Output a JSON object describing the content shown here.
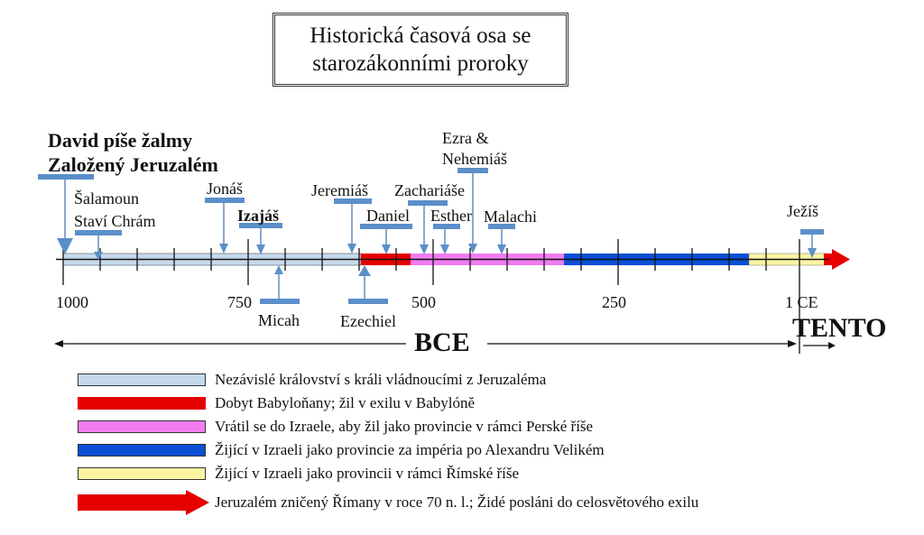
{
  "title": {
    "line1": "Historická časová osa se",
    "line2": "starozákonními proroky"
  },
  "colors": {
    "kingdom": "#c6d9ec",
    "babylon": "#e60000",
    "persia": "#f07cf0",
    "greek": "#0a4fd6",
    "rome": "#fbf5a3",
    "arrow": "#e60000",
    "marker": "#5b8fc9"
  },
  "events": {
    "david": "David píše žalmy",
    "jerusalem": "Založený Jeruzalém",
    "solomon1": "Šalamoun",
    "solomon2": "Staví Chrám",
    "jonah": "Jonáš",
    "isaiah": "Izajáš",
    "micah": "Micah",
    "jeremiah": "Jeremiáš",
    "daniel": "Daniel",
    "ezekiel": "Ezechiel",
    "zechariah": "Zachariáše",
    "esther": "Esther",
    "malachi": "Malachi",
    "ezra1": "Ezra &",
    "ezra2": "Nehemiáš",
    "jesus": "Ježíš"
  },
  "axis": {
    "ticks": [
      "1000",
      "750",
      "500",
      "250",
      "1 CE"
    ],
    "bce": "BCE",
    "now": "TENTO"
  },
  "legend": [
    {
      "text": "Nezávislé království s králi vládnoucími z Jeruzaléma"
    },
    {
      "text": "Dobyt Babyloňany; žil v exilu v Babylóně"
    },
    {
      "text": "Vrátil se do Izraele, aby žil jako provincie v rámci Perské říše"
    },
    {
      "text": "Žijící v Izraeli jako provincie za impéria po Alexandru Velikém"
    },
    {
      "text": "Žijící v Izraeli jako provincii v rámci Římské říše"
    },
    {
      "text": "Jeruzalém zničený Římany v roce 70 n. l.; Židé posláni do celosvětového exilu"
    }
  ]
}
